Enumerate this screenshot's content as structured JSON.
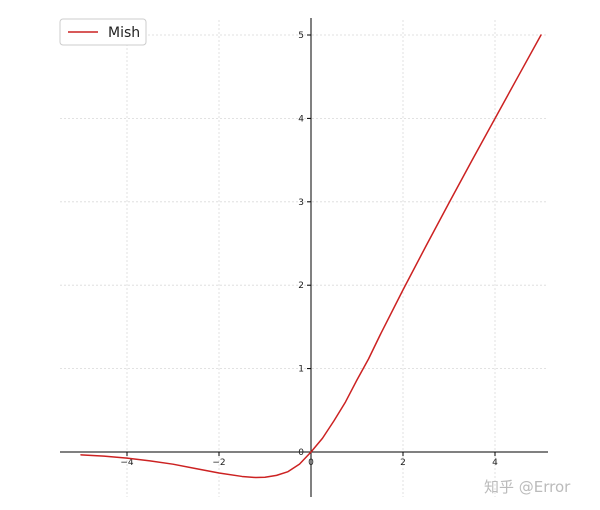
{
  "chart_data": {
    "type": "line",
    "title": "",
    "xlabel": "",
    "ylabel": "",
    "xlim": [
      -5,
      5
    ],
    "ylim": [
      -0.3,
      5
    ],
    "grid": true,
    "legend_position": "top-left",
    "x_ticks": [
      -4,
      -2,
      0,
      2,
      4
    ],
    "y_ticks": [
      0,
      1,
      2,
      3,
      4,
      5
    ],
    "x_tick_labels": [
      "−4",
      "−2",
      "0",
      "2",
      "4"
    ],
    "y_tick_labels": [
      "0",
      "1",
      "2",
      "3",
      "4",
      "5"
    ],
    "series": [
      {
        "name": "Mish",
        "color": "#cc2222",
        "x": [
          -5,
          -4.5,
          -4,
          -3.5,
          -3,
          -2.5,
          -2,
          -1.5,
          -1.2,
          -1,
          -0.75,
          -0.5,
          -0.25,
          0,
          0.25,
          0.5,
          0.75,
          1,
          1.25,
          1.5,
          2,
          2.5,
          3,
          3.5,
          4,
          4.5,
          5
        ],
        "y": [
          -0.034,
          -0.05,
          -0.073,
          -0.106,
          -0.146,
          -0.199,
          -0.252,
          -0.293,
          -0.306,
          -0.303,
          -0.28,
          -0.236,
          -0.145,
          0,
          0.165,
          0.375,
          0.6,
          0.865,
          1.115,
          1.4,
          1.944,
          2.47,
          2.987,
          3.497,
          3.999,
          4.5,
          5.0
        ]
      }
    ]
  },
  "watermark": {
    "text": "知乎 @Error"
  }
}
